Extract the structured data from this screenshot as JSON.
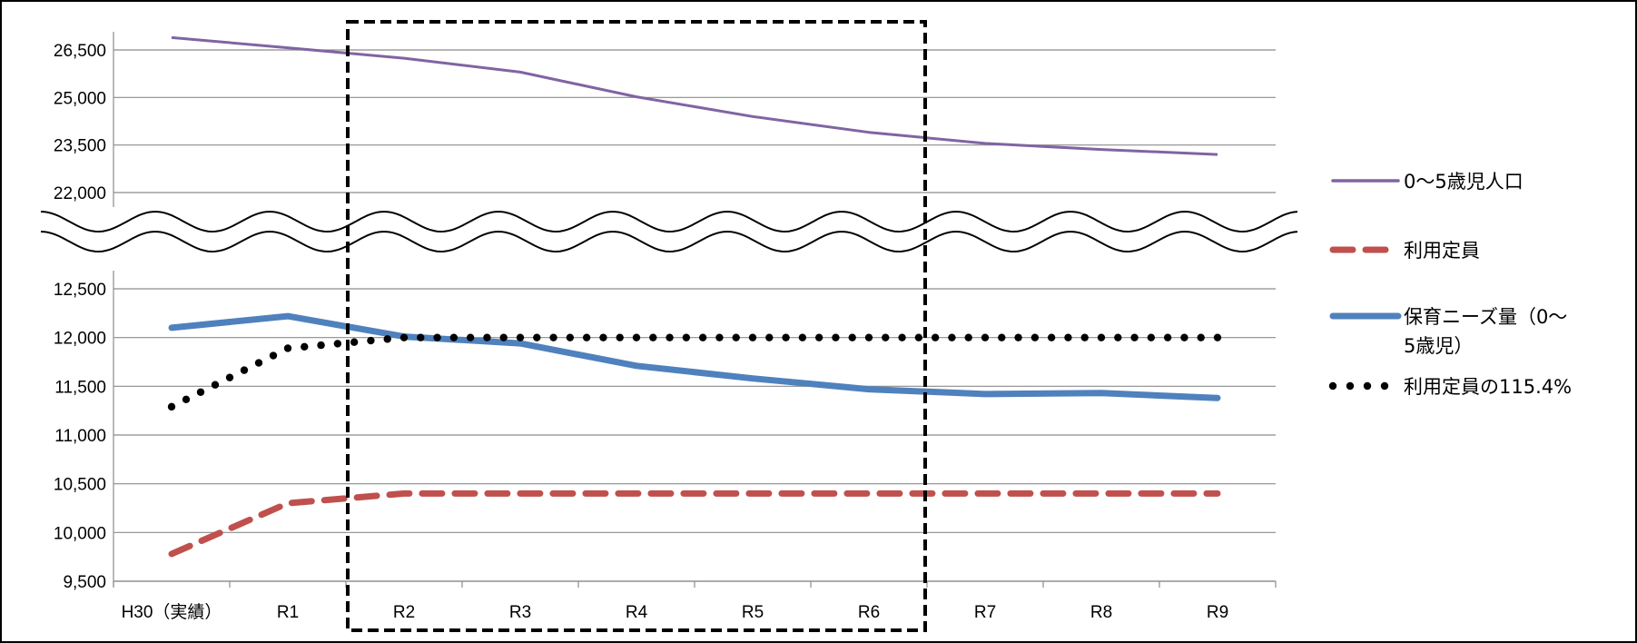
{
  "chart_data": {
    "type": "line",
    "categories": [
      "H30（実績）",
      "R1",
      "R2",
      "R3",
      "R4",
      "R5",
      "R6",
      "R7",
      "R8",
      "R9"
    ],
    "axis_break": true,
    "upper_axis": {
      "ticks": [
        "22,000",
        "23,500",
        "25,000",
        "26,500"
      ],
      "range": [
        22000,
        26500
      ]
    },
    "lower_axis": {
      "ticks": [
        "9,500",
        "10,000",
        "10,500",
        "11,000",
        "11,500",
        "12,000",
        "12,500"
      ],
      "range": [
        9500,
        12500
      ]
    },
    "grid": true,
    "highlight_box": {
      "from_category": "R2",
      "to_category": "R6",
      "style": "dashed"
    },
    "series": [
      {
        "name": "0～5歳児人口",
        "color": "#8064A2",
        "style": "solid",
        "axis": "upper",
        "values": [
          26890,
          26570,
          26240,
          25800,
          25020,
          24400,
          23900,
          23550,
          23360,
          23200
        ]
      },
      {
        "name": "利用定員",
        "color": "#C0504D",
        "style": "dashed",
        "axis": "lower",
        "values": [
          9780,
          10300,
          10400,
          10400,
          10400,
          10400,
          10400,
          10400,
          10400,
          10400
        ]
      },
      {
        "name": "保育ニーズ量（0～5歳児）",
        "color": "#4F81BD",
        "style": "solid-thick",
        "axis": "lower",
        "values": [
          12100,
          12220,
          12010,
          11940,
          11710,
          11580,
          11470,
          11420,
          11430,
          11380
        ]
      },
      {
        "name": "利用定員の115.4%",
        "color": "#000000",
        "style": "dotted",
        "axis": "lower",
        "values": [
          11290,
          11890,
          12000,
          12000,
          12000,
          12000,
          12000,
          12000,
          12000,
          12000
        ]
      }
    ],
    "legend": {
      "placement": "right",
      "entries": [
        {
          "lines": [
            "0～5歳児人口"
          ]
        },
        {
          "lines": [
            "利用定員"
          ]
        },
        {
          "lines": [
            "保育ニーズ量（0～",
            "5歳児）"
          ]
        },
        {
          "lines": [
            "利用定員の115.4%"
          ]
        }
      ]
    }
  }
}
